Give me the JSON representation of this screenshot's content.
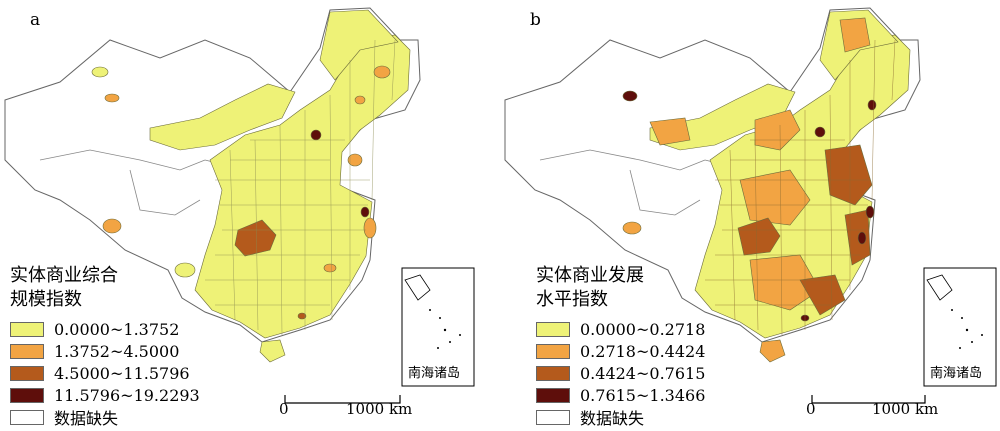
{
  "panels": [
    {
      "label": "a",
      "legend_title_line1": "实体商业综合",
      "legend_title_line2": "规模指数",
      "legend": [
        {
          "label": "0.0000~1.3752",
          "color": "#eef277"
        },
        {
          "label": "1.3752~4.5000",
          "color": "#f2a443"
        },
        {
          "label": "4.5000~11.5796",
          "color": "#b45a1c"
        },
        {
          "label": "11.5796~19.2293",
          "color": "#5e0e0b"
        },
        {
          "label": "数据缺失",
          "color": "#ffffff"
        }
      ],
      "inset_label": "南海诸岛",
      "scale": {
        "start": "0",
        "end": "1000 km"
      }
    },
    {
      "label": "b",
      "legend_title_line1": "实体商业发展",
      "legend_title_line2": "水平指数",
      "legend": [
        {
          "label": "0.0000~0.2718",
          "color": "#eef277"
        },
        {
          "label": "0.2718~0.4424",
          "color": "#f2a443"
        },
        {
          "label": "0.4424~0.7615",
          "color": "#b45a1c"
        },
        {
          "label": "0.7615~1.3466",
          "color": "#5e0e0b"
        },
        {
          "label": "数据缺失",
          "color": "#ffffff"
        }
      ],
      "inset_label": "南海诸岛",
      "scale": {
        "start": "0",
        "end": "1000 km"
      }
    }
  ]
}
